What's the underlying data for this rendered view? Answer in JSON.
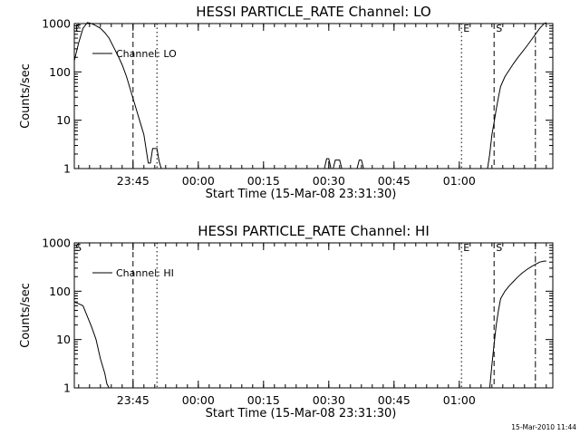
{
  "chart_data": [
    {
      "type": "line",
      "title": "HESSI PARTICLE_RATE Channel: LO",
      "ylabel": "Counts/sec",
      "xlabel": "Start Time (15-Mar-08 23:31:30)",
      "yscale": "log",
      "ylim": [
        1,
        1000
      ],
      "y_ticks": [
        "1",
        "10",
        "100",
        "1000"
      ],
      "x_ticks": [
        "23:45",
        "00:00",
        "00:15",
        "00:30",
        "00:45",
        "01:00"
      ],
      "grid": false,
      "legend_placement": "top-left",
      "series": [
        {
          "name": "Channel: LO",
          "x": [
            0,
            1,
            2,
            3,
            4,
            5,
            6,
            7,
            8,
            9,
            10,
            11,
            12,
            13,
            14,
            15,
            16,
            17,
            17.5,
            18,
            19,
            19.5,
            20,
            21,
            22,
            23,
            24,
            25.5,
            26,
            27.5,
            57.5,
            58,
            58.5,
            59,
            59.5,
            60,
            61,
            61.5,
            62,
            62.5,
            63,
            63.5,
            64,
            64.5,
            65,
            65.5,
            66,
            66.5,
            67,
            67.5,
            68,
            68.5,
            95,
            95.5,
            96,
            96.5,
            97,
            97.5,
            98,
            99,
            100,
            101,
            102,
            103,
            104,
            105,
            106,
            107,
            108,
            108.5
          ],
          "y": [
            170,
            400,
            800,
            1050,
            1000,
            900,
            800,
            650,
            500,
            330,
            220,
            140,
            80,
            40,
            20,
            10,
            5,
            1.3,
            1.3,
            2.6,
            2.6,
            1.4,
            1,
            1,
            1,
            1,
            1,
            1,
            1,
            1,
            1,
            1.6,
            1.6,
            1,
            1,
            1.5,
            1.5,
            1,
            1,
            1,
            1,
            1,
            1,
            1,
            1,
            1.5,
            1.5,
            1,
            1,
            1,
            1,
            1,
            1,
            2,
            5,
            9,
            17,
            30,
            50,
            80,
            110,
            150,
            200,
            260,
            340,
            450,
            600,
            800,
            1000,
            1050
          ]
        }
      ],
      "annotations": [
        {
          "label": "E",
          "style": "solid",
          "x": 0
        },
        {
          "label": "",
          "style": "dashed",
          "x": 13.5
        },
        {
          "label": "",
          "style": "dotted",
          "x": 19
        },
        {
          "label": "E",
          "style": "dotted",
          "x": 89
        },
        {
          "label": "S",
          "style": "dashed",
          "x": 96.5
        },
        {
          "label": "",
          "style": "dash-dot",
          "x": 106
        }
      ]
    },
    {
      "type": "line",
      "title": "HESSI PARTICLE_RATE Channel: HI",
      "ylabel": "Counts/sec",
      "xlabel": "Start Time (15-Mar-08 23:31:30)",
      "yscale": "log",
      "ylim": [
        1,
        1000
      ],
      "y_ticks": [
        "1",
        "10",
        "100",
        "1000"
      ],
      "x_ticks": [
        "23:45",
        "00:00",
        "00:15",
        "00:30",
        "00:45",
        "01:00"
      ],
      "grid": false,
      "legend_placement": "top-left",
      "series": [
        {
          "name": "Channel: HI",
          "x": [
            0,
            1,
            2,
            3,
            4,
            5,
            6,
            7,
            7.5,
            8,
            95.5,
            96,
            96.5,
            97,
            97.5,
            98,
            99,
            100,
            101,
            102,
            103,
            104,
            105,
            106,
            107,
            108,
            108.5
          ],
          "y": [
            60,
            55,
            50,
            30,
            18,
            10,
            4,
            2,
            1.2,
            1,
            1,
            3,
            8,
            20,
            40,
            70,
            100,
            130,
            160,
            200,
            240,
            280,
            320,
            360,
            400,
            420,
            420
          ]
        }
      ],
      "annotations": [
        {
          "label": "S",
          "style": "solid",
          "x": 0
        },
        {
          "label": "",
          "style": "dashed",
          "x": 13.5
        },
        {
          "label": "",
          "style": "dotted",
          "x": 19
        },
        {
          "label": "E",
          "style": "dotted",
          "x": 89
        },
        {
          "label": "S",
          "style": "dashed",
          "x": 96.5
        },
        {
          "label": "",
          "style": "dash-dot",
          "x": 106
        }
      ]
    }
  ],
  "footer": {
    "timestamp": "15-Mar-2010 11:44"
  }
}
